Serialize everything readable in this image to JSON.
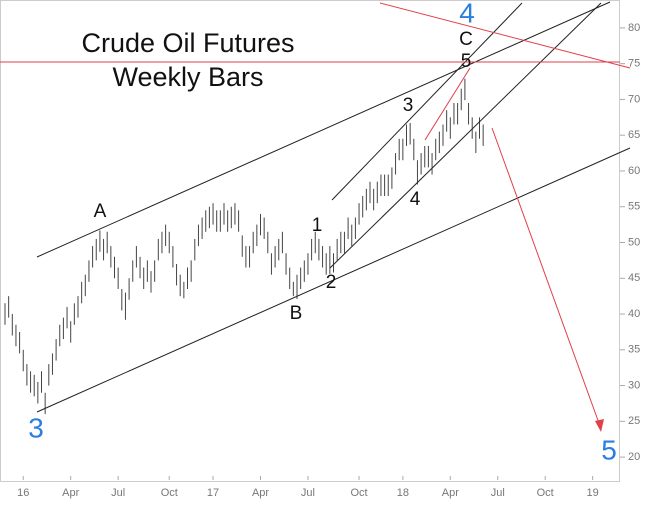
{
  "chart_data": {
    "type": "ohlc",
    "title": "Crude Oil Futures",
    "subtitle": "Weekly Bars",
    "color": "#444444",
    "y_axis_side": "right",
    "ylim": [
      16.8,
      83.9
    ],
    "yticks": [
      20,
      25,
      30,
      35,
      40,
      45,
      50,
      55,
      60,
      65,
      70,
      75,
      80
    ],
    "annotations": [
      "A",
      "B",
      "1",
      "2",
      "3",
      "4",
      "5",
      "C",
      "3",
      "4",
      "5"
    ],
    "categories": [
      null,
      null,
      null,
      null,
      null,
      "16",
      null,
      null,
      null,
      null,
      null,
      null,
      null,
      null,
      null,
      null,
      null,
      null,
      "Apr",
      null,
      null,
      null,
      null,
      null,
      null,
      null,
      null,
      null,
      null,
      null,
      null,
      "Jul",
      null,
      null,
      null,
      null,
      null,
      null,
      null,
      null,
      null,
      null,
      null,
      null,
      null,
      "Oct",
      null,
      null,
      null,
      null,
      null,
      null,
      null,
      null,
      null,
      null,
      null,
      "17",
      null,
      null,
      null,
      null,
      null,
      null,
      null,
      null,
      null,
      null,
      null,
      null,
      "Apr",
      null,
      null,
      null,
      null,
      null,
      null,
      null,
      null,
      null,
      null,
      null,
      null,
      "Jul",
      null,
      null,
      null,
      null,
      null,
      null,
      null,
      null,
      null,
      null,
      null,
      null,
      null,
      "Oct",
      null,
      null,
      null,
      null,
      null,
      null,
      null,
      null,
      null,
      null,
      null,
      "18",
      null,
      null,
      null,
      null,
      null,
      null,
      null,
      null,
      null,
      null,
      null,
      null,
      "Apr",
      null,
      null,
      null,
      null,
      null,
      null,
      null,
      null,
      null,
      null,
      null,
      null,
      "Jul",
      null,
      null,
      null,
      null,
      null,
      null,
      null,
      null,
      null,
      null,
      null,
      null,
      "Oct",
      null,
      null,
      null,
      null,
      null,
      null,
      null,
      null,
      null,
      null,
      null,
      null,
      "19",
      null,
      null,
      null,
      null,
      null,
      null,
      null,
      null
    ],
    "high": [
      41.5,
      42.5,
      40,
      38.5,
      37.5,
      35,
      33,
      32,
      31.5,
      30.5,
      32,
      29,
      33,
      34.5,
      36.5,
      38.5,
      39.5,
      41,
      39,
      41.5,
      42.5,
      44.5,
      45.5,
      47.5,
      49.5,
      50.5,
      51.7,
      50.5,
      51.5,
      49.5,
      48,
      46.5,
      43.5,
      43,
      45,
      47.5,
      49.5,
      48,
      46.5,
      47.5,
      46,
      47.5,
      50.5,
      51.5,
      52.5,
      51.5,
      49.5,
      47,
      45.5,
      44.5,
      46.5,
      47.5,
      50.5,
      52.5,
      53.5,
      54.5,
      55,
      55.5,
      54.5,
      54.5,
      55.5,
      54.5,
      55,
      55.5,
      54.5,
      51,
      49.5,
      49.5,
      51.5,
      52.5,
      54,
      53.5,
      51.5,
      48.5,
      49.5,
      50.5,
      51.5,
      48.5,
      46.5,
      44.5,
      45.5,
      46.5,
      47.5,
      48.5,
      50.5,
      51.5,
      50.5,
      49.5,
      48.5,
      49.5,
      48.5,
      50.5,
      51.5,
      51.5,
      53.5,
      52.5,
      53.5,
      55.5,
      56.5,
      57.5,
      58.5,
      57.5,
      58.5,
      59.5,
      59.5,
      59.5,
      60.5,
      62.5,
      64.5,
      64.5,
      66.5,
      66.7,
      64.5,
      61.5,
      62.5,
      63.5,
      63.5,
      62.5,
      64.5,
      65.5,
      66.5,
      68.5,
      67.5,
      69.5,
      69.5,
      71.5,
      72.9,
      69.5,
      67.5,
      65.5,
      67.5,
      66.5,
      null,
      null,
      null,
      null,
      null,
      null,
      null,
      null,
      null,
      null,
      null,
      null,
      null,
      null,
      null,
      null,
      null,
      null,
      null,
      null,
      null,
      null,
      null,
      null,
      null,
      null,
      null,
      null,
      null,
      null,
      null,
      null,
      null,
      null,
      null,
      null,
      null,
      null
    ],
    "low": [
      38.5,
      39.5,
      37,
      35.5,
      34.5,
      32,
      30,
      29,
      28.5,
      27.5,
      29,
      26,
      30,
      31.5,
      33.5,
      35.5,
      36.5,
      38,
      36,
      38.5,
      39.5,
      41.5,
      42.5,
      44.5,
      46.5,
      47.5,
      48.7,
      47.5,
      48.5,
      46.5,
      45,
      43.5,
      40.5,
      39.2,
      42,
      44.5,
      46.5,
      45,
      43.5,
      44.5,
      43,
      44.5,
      47.5,
      48.5,
      49.5,
      48.5,
      46.5,
      44,
      42.5,
      42.2,
      43.5,
      44.5,
      47.5,
      49.5,
      50.5,
      51.5,
      52,
      52.5,
      51.5,
      51.5,
      52.5,
      51.5,
      52,
      52.5,
      51.5,
      48,
      46.5,
      46.5,
      48.5,
      49.5,
      51,
      50.5,
      48.5,
      45.5,
      46.5,
      47.5,
      48.5,
      45.5,
      43.5,
      42.5,
      42.1,
      43.5,
      44.5,
      45.5,
      47.5,
      48.5,
      47.5,
      46.5,
      45.5,
      45.6,
      45.8,
      47.5,
      48.5,
      48.5,
      50.5,
      49.5,
      50.5,
      52.5,
      53.5,
      54.5,
      55.5,
      54.5,
      55.5,
      56.5,
      56.5,
      56.5,
      57.5,
      59.5,
      61.5,
      61.5,
      63.5,
      63.7,
      61.5,
      58.1,
      59.5,
      60.5,
      60.5,
      59.5,
      61.5,
      62.5,
      63.5,
      65.5,
      64.5,
      66.5,
      66.5,
      68.5,
      69.9,
      66.5,
      64.5,
      62.5,
      64.5,
      63.5,
      null,
      null,
      null,
      null,
      null,
      null,
      null,
      null,
      null,
      null,
      null,
      null,
      null,
      null,
      null,
      null,
      null,
      null,
      null,
      null,
      null,
      null,
      null,
      null,
      null,
      null,
      null,
      null,
      null,
      null,
      null,
      null,
      null,
      null,
      null,
      null,
      null,
      null
    ]
  }
}
